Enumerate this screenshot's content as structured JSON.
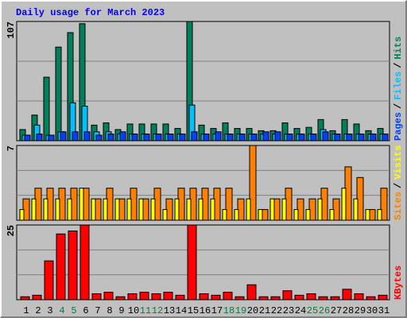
{
  "chart_data": {
    "type": "bar",
    "title": "Daily usage for March 2023",
    "categories": [
      "1",
      "2",
      "3",
      "4",
      "5",
      "6",
      "7",
      "8",
      "9",
      "10",
      "11",
      "12",
      "13",
      "14",
      "15",
      "16",
      "17",
      "18",
      "19",
      "20",
      "21",
      "22",
      "23",
      "24",
      "25",
      "26",
      "27",
      "28",
      "29",
      "30",
      "31"
    ],
    "category_color": "#000000",
    "weekend_color": "#008040",
    "weekends": [
      3,
      4,
      10,
      11,
      17,
      18,
      24,
      25
    ],
    "legend_separator": "/",
    "panels": [
      {
        "ylim": [
          0,
          107
        ],
        "yticks": [
          107
        ],
        "series": [
          {
            "name": "Hits",
            "color": "#00805c",
            "values": [
              10,
              23,
              57,
              84,
              97,
              105,
              14,
              16,
              10,
              15,
              15,
              15,
              15,
              11,
              107,
              14,
              11,
              16,
              11,
              11,
              9,
              9,
              16,
              11,
              12,
              19,
              9,
              19,
              15,
              9,
              11
            ]
          },
          {
            "name": "Files",
            "color": "#00c0ff",
            "values": [
              5,
              14,
              5,
              8,
              34,
              31,
              8,
              8,
              6,
              6,
              6,
              6,
              6,
              6,
              32,
              6,
              6,
              6,
              6,
              6,
              6,
              6,
              6,
              6,
              6,
              10,
              6,
              6,
              6,
              6,
              6
            ]
          },
          {
            "name": "Pages",
            "color": "#0040ff",
            "values": [
              5,
              6,
              5,
              8,
              8,
              8,
              5,
              6,
              8,
              6,
              6,
              6,
              6,
              6,
              8,
              6,
              8,
              6,
              6,
              6,
              8,
              8,
              6,
              6,
              6,
              8,
              6,
              6,
              6,
              6,
              6
            ]
          }
        ]
      },
      {
        "ylim": [
          0,
          7
        ],
        "yticks": [
          7
        ],
        "series": [
          {
            "name": "Visits",
            "color": "#ffff00",
            "values": [
              1,
              2,
              2,
              2,
              2,
              3,
              2,
              2,
              2,
              2,
              2,
              2,
              1,
              2,
              2,
              2,
              2,
              1,
              1,
              2,
              1,
              2,
              2,
              1,
              1,
              2,
              1,
              3,
              2,
              1,
              1
            ]
          },
          {
            "name": "Sites",
            "color": "#ff8000",
            "values": [
              2,
              3,
              3,
              3,
              3,
              3,
              2,
              3,
              2,
              3,
              2,
              3,
              2,
              3,
              3,
              3,
              3,
              3,
              2,
              7,
              1,
              2,
              3,
              2,
              2,
              3,
              2,
              5,
              4,
              1,
              3
            ]
          }
        ]
      },
      {
        "ylim": [
          0,
          25
        ],
        "yticks": [
          25
        ],
        "series": [
          {
            "name": "KBytes",
            "color": "#ff0000",
            "values": [
              1,
              1.5,
              13,
              22,
              23,
              25,
              2,
              2.5,
              1,
              2,
              2.5,
              2,
              2.5,
              1.5,
              25,
              2,
              1.5,
              2.5,
              1,
              5,
              1,
              1,
              3,
              1.5,
              2,
              1,
              1,
              3.5,
              2,
              1,
              1.5
            ]
          }
        ]
      }
    ]
  }
}
